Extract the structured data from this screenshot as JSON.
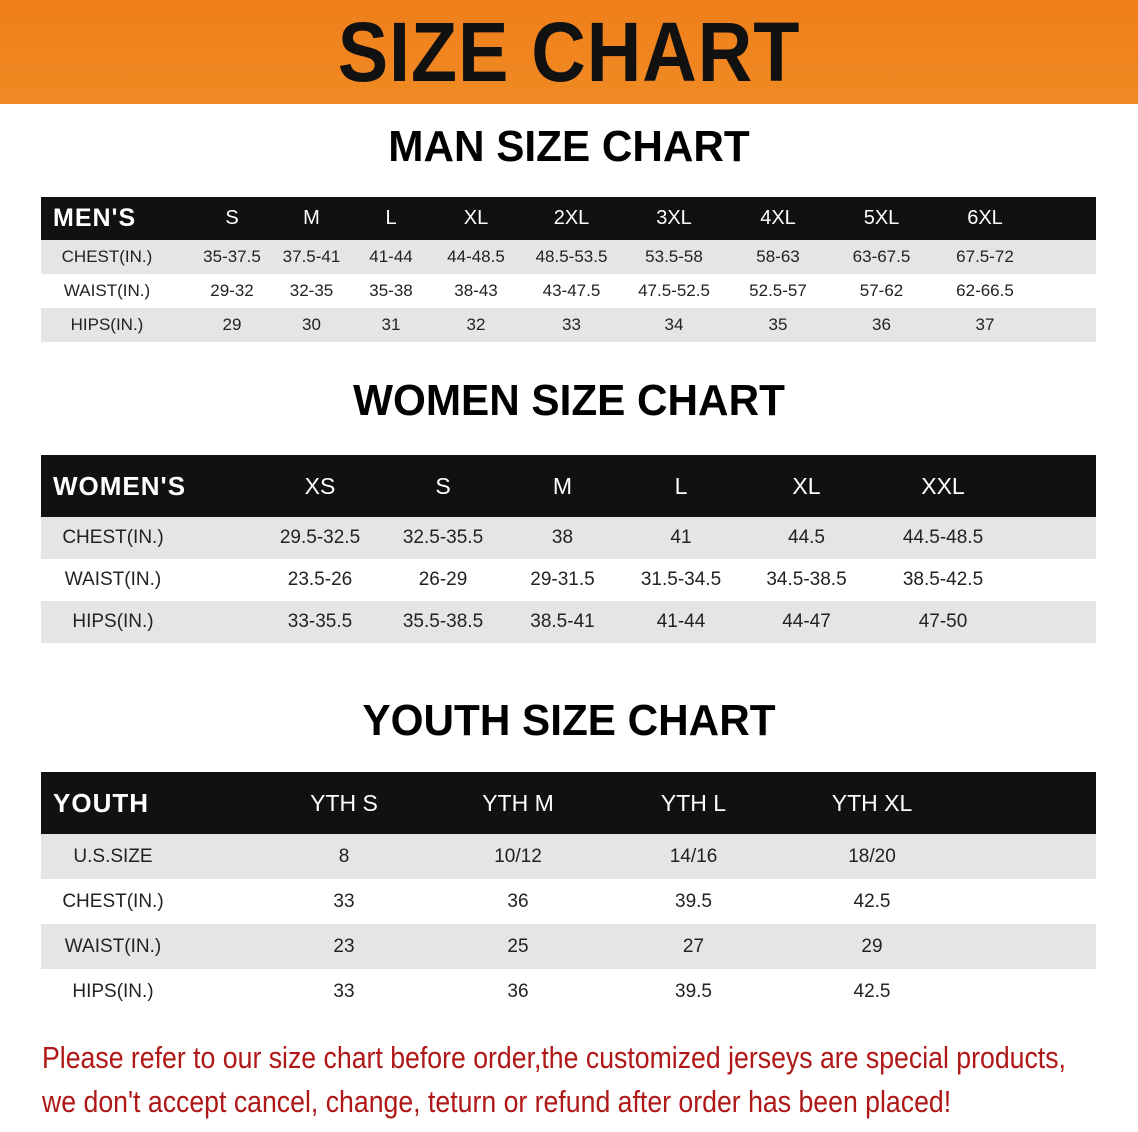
{
  "banner": {
    "title": "SIZE CHART",
    "color": "#ef7f1a"
  },
  "men": {
    "title": "MAN SIZE CHART",
    "header": [
      "MEN'S",
      "S",
      "M",
      "L",
      "XL",
      "2XL",
      "3XL",
      "4XL",
      "5XL",
      "6XL"
    ],
    "rows": [
      [
        "CHEST(IN.)",
        "35-37.5",
        "37.5-41",
        "41-44",
        "44-48.5",
        "48.5-53.5",
        "53.5-58",
        "58-63",
        "63-67.5",
        "67.5-72"
      ],
      [
        "WAIST(IN.)",
        "29-32",
        "32-35",
        "35-38",
        "38-43",
        "43-47.5",
        "47.5-52.5",
        "52.5-57",
        "57-62",
        "62-66.5"
      ],
      [
        "HIPS(IN.)",
        "29",
        "30",
        "31",
        "32",
        "33",
        "34",
        "35",
        "36",
        "37"
      ]
    ]
  },
  "women": {
    "title": "WOMEN SIZE CHART",
    "header": [
      "WOMEN'S",
      "XS",
      "S",
      "M",
      "L",
      "XL",
      "XXL"
    ],
    "rows": [
      [
        "CHEST(IN.)",
        "29.5-32.5",
        "32.5-35.5",
        "38",
        "41",
        "44.5",
        "44.5-48.5"
      ],
      [
        "WAIST(IN.)",
        "23.5-26",
        "26-29",
        "29-31.5",
        "31.5-34.5",
        "34.5-38.5",
        "38.5-42.5"
      ],
      [
        "HIPS(IN.)",
        "33-35.5",
        "35.5-38.5",
        "38.5-41",
        "41-44",
        "44-47",
        "47-50"
      ]
    ]
  },
  "youth": {
    "title": "YOUTH SIZE CHART",
    "header": [
      "YOUTH",
      "YTH S",
      "YTH M",
      "YTH L",
      "YTH XL"
    ],
    "rows": [
      [
        "U.S.SIZE",
        "8",
        "10/12",
        "14/16",
        "18/20"
      ],
      [
        "CHEST(IN.)",
        "33",
        "36",
        "39.5",
        "42.5"
      ],
      [
        "WAIST(IN.)",
        "23",
        "25",
        "27",
        "29"
      ],
      [
        "HIPS(IN.)",
        "33",
        "36",
        "39.5",
        "42.5"
      ]
    ]
  },
  "note": {
    "line1": "Please refer to our size chart before order,the customized jerseys are special products,",
    "line2": "we don't accept cancel, change, teturn or refund after order has been placed!",
    "color": "#b01818"
  }
}
